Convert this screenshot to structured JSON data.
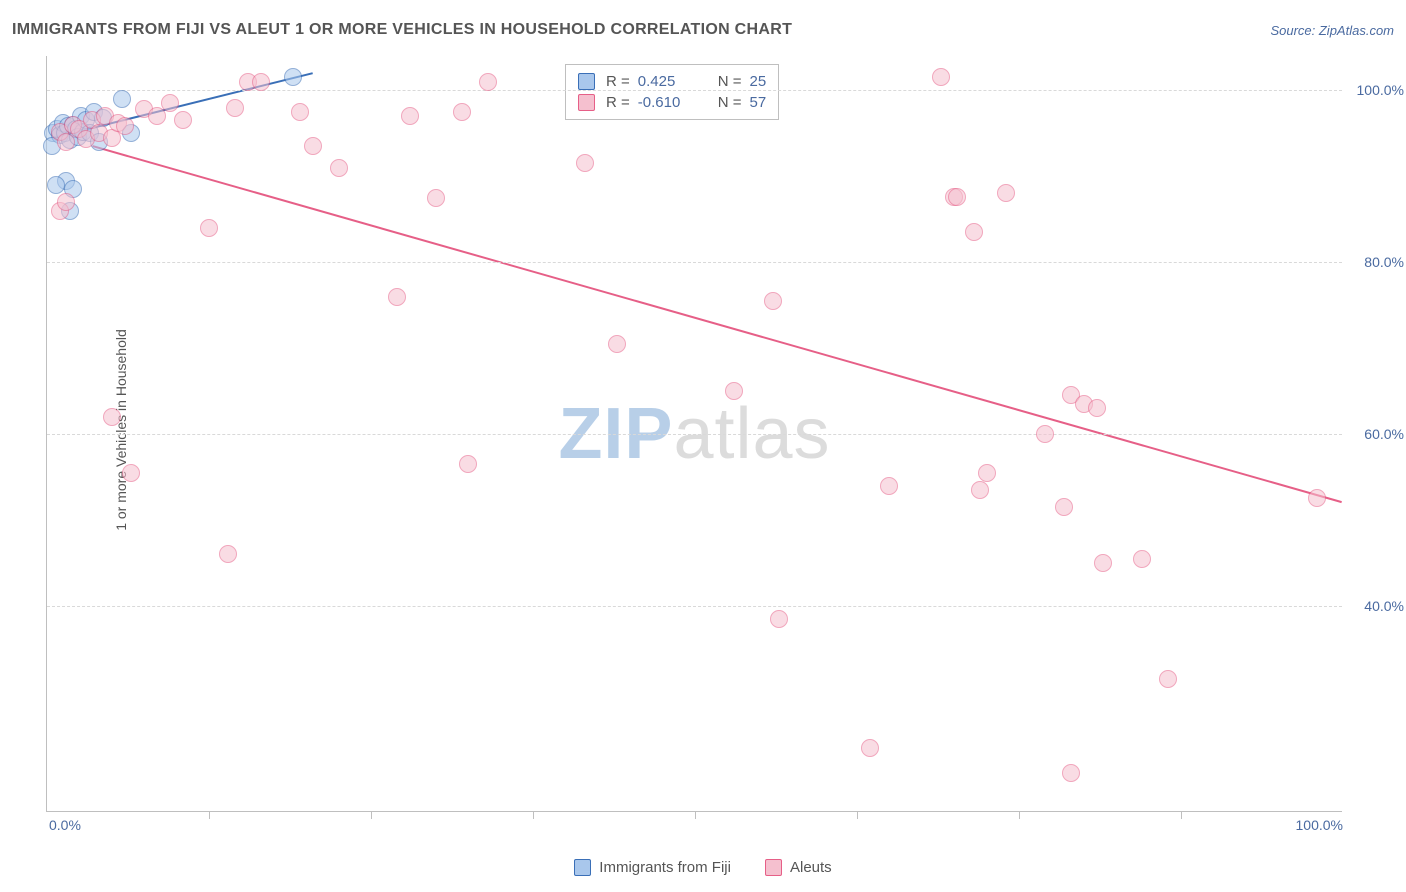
{
  "title": "IMMIGRANTS FROM FIJI VS ALEUT 1 OR MORE VEHICLES IN HOUSEHOLD CORRELATION CHART",
  "source_label": "Source: ZipAtlas.com",
  "ylabel": "1 or more Vehicles in Household",
  "watermark": {
    "part1": "ZIP",
    "part2": "atlas"
  },
  "chart": {
    "type": "scatter",
    "xlim": [
      0,
      100
    ],
    "ylim": [
      16,
      104
    ],
    "yticks": [
      40,
      60,
      80,
      100
    ],
    "ytick_labels": [
      "40.0%",
      "60.0%",
      "80.0%",
      "100.0%"
    ],
    "xticks": [
      0,
      50,
      100
    ],
    "xtick_labels": [
      "0.0%",
      "",
      "100.0%"
    ],
    "xminor_ticks": [
      12.5,
      25,
      37.5,
      50,
      62.5,
      75,
      87.5
    ],
    "grid_color": "#d9d9d9",
    "axis_color": "#bfbfbf",
    "background_color": "#ffffff",
    "marker_radius": 9,
    "marker_opacity": 0.55,
    "line_width": 2
  },
  "series": [
    {
      "id": "fiji",
      "label": "Immigrants from Fiji",
      "color_fill": "#a9c7ec",
      "color_stroke": "#3a6fb7",
      "r": "0.425",
      "n": "25",
      "trend": {
        "x1": 0.5,
        "y1": 94.5,
        "x2": 20.5,
        "y2": 102.0
      },
      "points": [
        [
          0.5,
          95
        ],
        [
          0.8,
          95.5
        ],
        [
          1.0,
          94.8
        ],
        [
          1.2,
          96.2
        ],
        [
          1.4,
          95.0
        ],
        [
          1.6,
          95.8
        ],
        [
          1.8,
          94.2
        ],
        [
          2.0,
          96.0
        ],
        [
          2.2,
          95.5
        ],
        [
          2.4,
          94.6
        ],
        [
          2.6,
          97.0
        ],
        [
          2.8,
          95.2
        ],
        [
          3.0,
          96.5
        ],
        [
          3.3,
          95.0
        ],
        [
          3.6,
          97.5
        ],
        [
          4.0,
          94.0
        ],
        [
          4.3,
          96.8
        ],
        [
          1.5,
          89.5
        ],
        [
          2.0,
          88.5
        ],
        [
          0.7,
          89.0
        ],
        [
          5.8,
          99.0
        ],
        [
          6.5,
          95.0
        ],
        [
          19.0,
          101.5
        ],
        [
          1.8,
          86.0
        ],
        [
          0.4,
          93.5
        ]
      ]
    },
    {
      "id": "aleuts",
      "label": "Aleuts",
      "color_fill": "#f5c0cf",
      "color_stroke": "#e65f87",
      "r": "-0.610",
      "n": "57",
      "trend": {
        "x1": 3.5,
        "y1": 93.5,
        "x2": 100,
        "y2": 52.0
      },
      "points": [
        [
          1.0,
          95.2
        ],
        [
          1.5,
          94.0
        ],
        [
          2.0,
          96.0
        ],
        [
          2.5,
          95.5
        ],
        [
          3.0,
          94.3
        ],
        [
          3.5,
          96.5
        ],
        [
          4.0,
          95.0
        ],
        [
          4.5,
          97.0
        ],
        [
          5.0,
          94.5
        ],
        [
          5.5,
          96.2
        ],
        [
          6.0,
          95.8
        ],
        [
          7.5,
          97.8
        ],
        [
          8.5,
          97.0
        ],
        [
          9.5,
          98.5
        ],
        [
          10.5,
          96.5
        ],
        [
          14.5,
          98.0
        ],
        [
          15.5,
          101.0
        ],
        [
          16.5,
          101.0
        ],
        [
          19.5,
          97.5
        ],
        [
          20.5,
          93.5
        ],
        [
          22.5,
          91.0
        ],
        [
          28.0,
          97.0
        ],
        [
          32.0,
          97.5
        ],
        [
          34.0,
          101.0
        ],
        [
          30.0,
          87.5
        ],
        [
          41.5,
          91.5
        ],
        [
          44.0,
          70.5
        ],
        [
          1.0,
          86.0
        ],
        [
          1.5,
          87.0
        ],
        [
          12.5,
          84.0
        ],
        [
          27.0,
          76.0
        ],
        [
          5.0,
          62.0
        ],
        [
          6.5,
          55.5
        ],
        [
          32.5,
          56.5
        ],
        [
          14.0,
          46.0
        ],
        [
          53.0,
          65.0
        ],
        [
          56.0,
          75.5
        ],
        [
          56.5,
          38.5
        ],
        [
          63.5,
          23.5
        ],
        [
          69.0,
          101.5
        ],
        [
          70.0,
          87.6
        ],
        [
          70.2,
          87.6
        ],
        [
          71.5,
          83.5
        ],
        [
          72.0,
          53.5
        ],
        [
          72.5,
          55.5
        ],
        [
          74.0,
          88.0
        ],
        [
          77.0,
          60.0
        ],
        [
          79.0,
          64.5
        ],
        [
          80.0,
          63.5
        ],
        [
          81.0,
          63.0
        ],
        [
          81.5,
          45.0
        ],
        [
          78.5,
          51.5
        ],
        [
          84.5,
          45.5
        ],
        [
          86.5,
          31.5
        ],
        [
          79.0,
          20.5
        ],
        [
          98.0,
          52.5
        ],
        [
          65.0,
          54.0
        ]
      ]
    }
  ],
  "legend_box": {
    "left_pct": 40.0,
    "top_pct": 1.0
  },
  "bottom_legend_labels": {
    "fiji": "Immigrants from Fiji",
    "aleuts": "Aleuts"
  }
}
